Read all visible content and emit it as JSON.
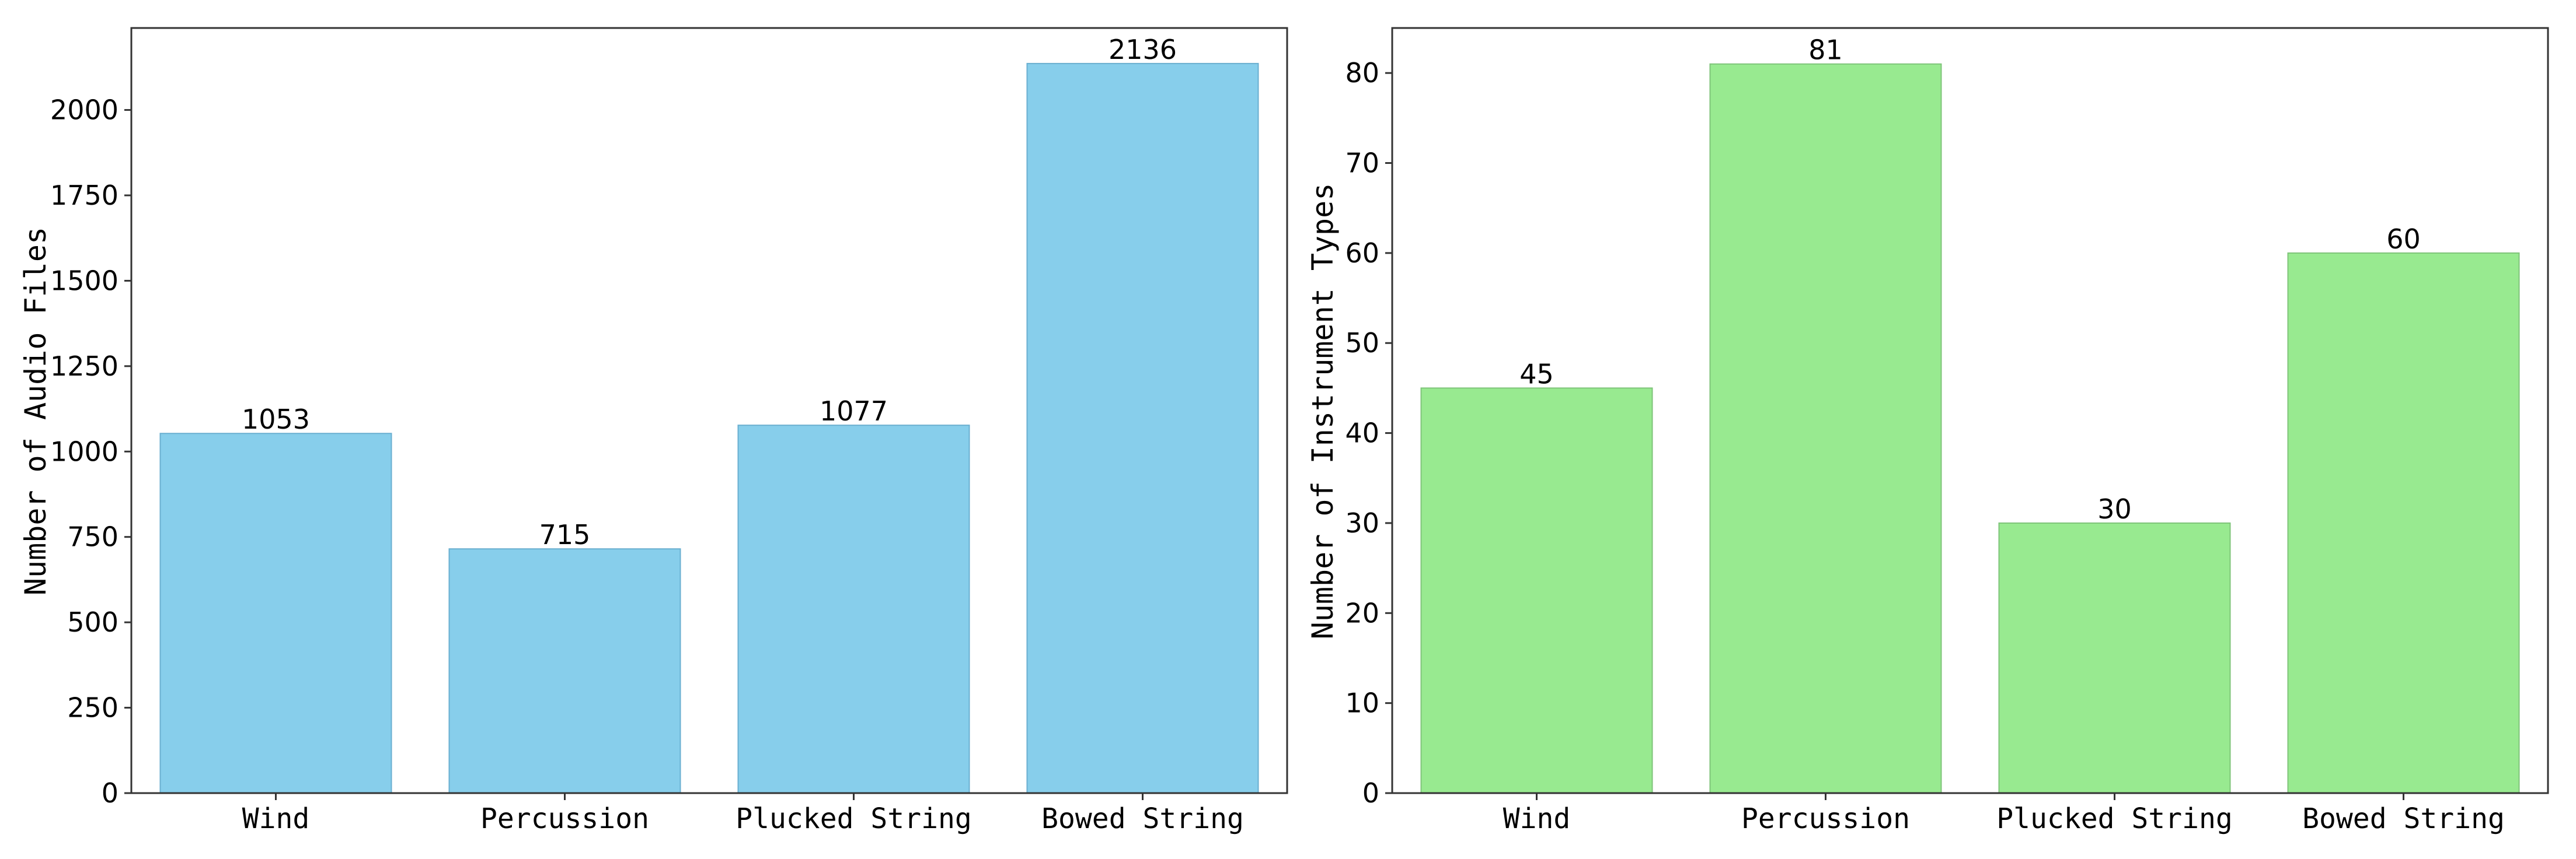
{
  "chart_data": [
    {
      "type": "bar",
      "categories": [
        "Wind",
        "Percussion",
        "Plucked String",
        "Bowed String"
      ],
      "values": [
        1053,
        715,
        1077,
        2136
      ],
      "title": "",
      "xlabel": "",
      "ylabel": "Number of Audio Files",
      "ylim": [
        0,
        2240
      ],
      "yticks": [
        0,
        250,
        500,
        750,
        1000,
        1250,
        1500,
        1750,
        2000
      ],
      "color": "#87CEEB",
      "edge_color": "#6AAFD0",
      "grid": false,
      "data_labels": true
    },
    {
      "type": "bar",
      "categories": [
        "Wind",
        "Percussion",
        "Plucked String",
        "Bowed String"
      ],
      "values": [
        45,
        81,
        30,
        60
      ],
      "title": "",
      "xlabel": "",
      "ylabel": "Number of Instrument Types",
      "ylim": [
        0,
        85
      ],
      "yticks": [
        0,
        10,
        20,
        30,
        40,
        50,
        60,
        70,
        80
      ],
      "color": "#98EA90",
      "edge_color": "#7FC47A",
      "grid": false,
      "data_labels": true
    }
  ]
}
